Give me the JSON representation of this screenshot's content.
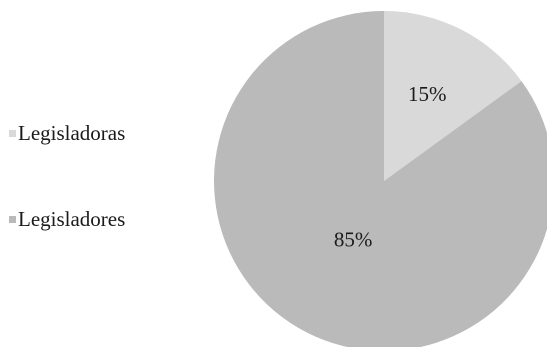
{
  "chart_data": {
    "type": "pie",
    "title": "",
    "categories": [
      "Legisladoras",
      "Legisladores"
    ],
    "values": [
      15,
      85
    ],
    "labels": [
      "15%",
      "85%"
    ],
    "colors": [
      "#d9d9d9",
      "#bababa"
    ],
    "start_angle_deg": 0,
    "direction": "clockwise",
    "legend_position": "left"
  }
}
